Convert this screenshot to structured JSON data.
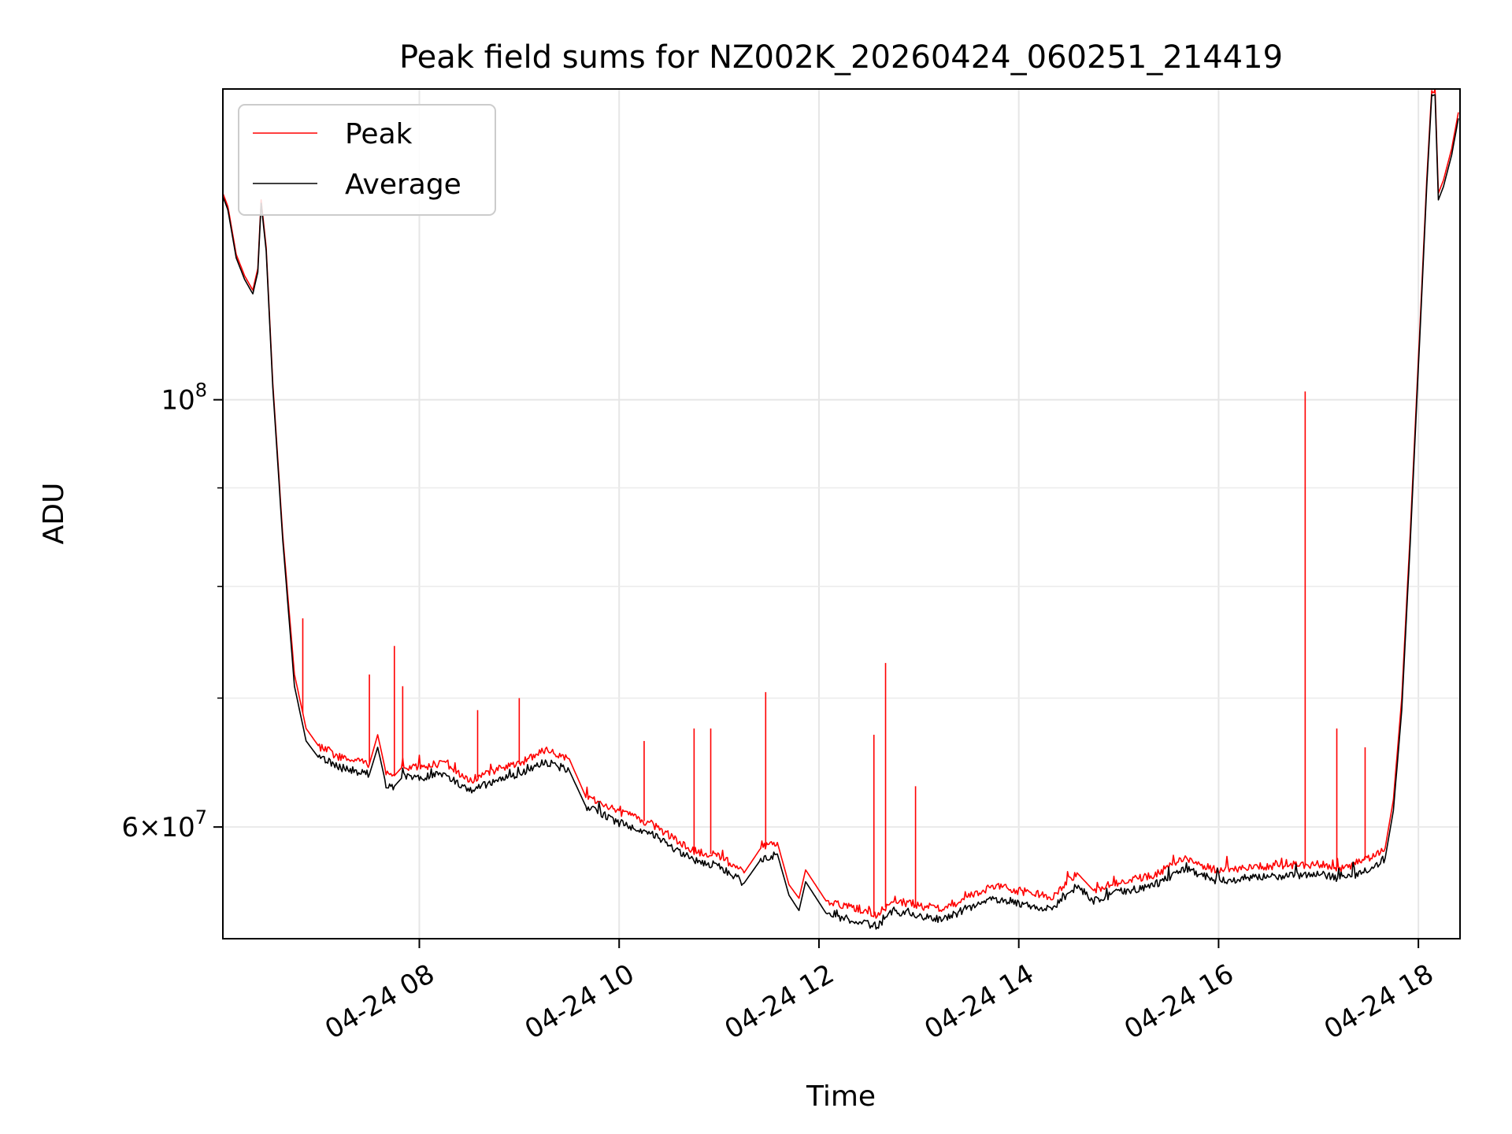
{
  "chart_data": {
    "type": "line",
    "title": "Peak field sums for NZ002K_20260424_060251_214419",
    "xlabel": "Time",
    "ylabel": "ADU",
    "yscale": "log",
    "xlim": [
      "2026-04-24 06:02",
      "2026-04-24 18:25"
    ],
    "ylim": [
      52500000,
      145000000
    ],
    "grid": true,
    "legend": "top-left",
    "x_ticks": [
      {
        "t": "2026-04-24 08:00",
        "label": "04-24 08"
      },
      {
        "t": "2026-04-24 10:00",
        "label": "04-24 10"
      },
      {
        "t": "2026-04-24 12:00",
        "label": "04-24 12"
      },
      {
        "t": "2026-04-24 14:00",
        "label": "04-24 14"
      },
      {
        "t": "2026-04-24 16:00",
        "label": "04-24 16"
      },
      {
        "t": "2026-04-24 18:00",
        "label": "04-24 18"
      }
    ],
    "y_major_ticks": [
      {
        "value": 60000000,
        "base": "6",
        "exp": "7"
      },
      {
        "value": 100000000,
        "base": "",
        "exp": "8"
      }
    ],
    "y_minor_ticks": [
      60000000,
      70000000,
      80000000,
      90000000
    ],
    "series": [
      {
        "name": "Peak",
        "color": "#ff0000",
        "t": [
          "2026-04-24 06:02",
          "2026-04-24 06:05",
          "2026-04-24 06:10",
          "2026-04-24 06:15",
          "2026-04-24 06:20",
          "2026-04-24 06:23",
          "2026-04-24 06:25",
          "2026-04-24 06:28",
          "2026-04-24 06:32",
          "2026-04-24 06:38",
          "2026-04-24 06:45",
          "2026-04-24 06:52",
          "2026-04-24 07:00",
          "2026-04-24 07:05",
          "2026-04-24 07:10",
          "2026-04-24 07:20",
          "2026-04-24 07:30",
          "2026-04-24 07:35",
          "2026-04-24 07:40",
          "2026-04-24 07:45",
          "2026-04-24 07:50",
          "2026-04-24 08:00",
          "2026-04-24 08:15",
          "2026-04-24 08:30",
          "2026-04-24 08:45",
          "2026-04-24 09:00",
          "2026-04-24 09:15",
          "2026-04-24 09:30",
          "2026-04-24 09:40",
          "2026-04-24 10:00",
          "2026-04-24 10:20",
          "2026-04-24 10:30",
          "2026-04-24 10:45",
          "2026-04-24 11:00",
          "2026-04-24 11:15",
          "2026-04-24 11:25",
          "2026-04-24 11:35",
          "2026-04-24 11:42",
          "2026-04-24 11:48",
          "2026-04-24 11:52",
          "2026-04-24 12:05",
          "2026-04-24 12:20",
          "2026-04-24 12:35",
          "2026-04-24 12:45",
          "2026-04-24 13:00",
          "2026-04-24 13:15",
          "2026-04-24 13:30",
          "2026-04-24 13:45",
          "2026-04-24 14:00",
          "2026-04-24 14:20",
          "2026-04-24 14:35",
          "2026-04-24 14:45",
          "2026-04-24 15:00",
          "2026-04-24 15:20",
          "2026-04-24 15:40",
          "2026-04-24 16:00",
          "2026-04-24 16:20",
          "2026-04-24 16:40",
          "2026-04-24 17:00",
          "2026-04-24 17:15",
          "2026-04-24 17:30",
          "2026-04-24 17:40",
          "2026-04-24 17:45",
          "2026-04-24 17:50",
          "2026-04-24 17:55",
          "2026-04-24 18:00",
          "2026-04-24 18:05",
          "2026-04-24 18:08",
          "2026-04-24 18:10",
          "2026-04-24 18:12",
          "2026-04-24 18:15",
          "2026-04-24 18:20",
          "2026-04-24 18:24"
        ],
        "values": [
          128000000,
          126000000,
          119000000,
          116000000,
          114000000,
          117000000,
          127000000,
          120000000,
          102000000,
          85000000,
          72000000,
          67500000,
          66000000,
          65800000,
          65300000,
          65000000,
          64700000,
          67000000,
          64000000,
          63800000,
          64500000,
          64400000,
          64800000,
          63400000,
          64200000,
          64700000,
          65800000,
          65100000,
          62200000,
          61100000,
          60200000,
          59400000,
          58300000,
          58000000,
          56800000,
          58500000,
          58900000,
          56000000,
          55100000,
          57000000,
          54800000,
          54500000,
          54000000,
          55000000,
          54600000,
          54400000,
          55200000,
          55900000,
          55600000,
          55200000,
          56800000,
          55600000,
          56200000,
          56600000,
          57800000,
          56900000,
          57200000,
          57300000,
          57400000,
          57100000,
          57800000,
          58500000,
          62000000,
          70000000,
          85000000,
          105000000,
          130000000,
          145000000,
          145000000,
          128000000,
          130000000,
          135000000,
          141000000
        ]
      },
      {
        "name": "Average",
        "color": "#000000",
        "t": [
          "2026-04-24 06:02",
          "2026-04-24 06:05",
          "2026-04-24 06:10",
          "2026-04-24 06:15",
          "2026-04-24 06:20",
          "2026-04-24 06:23",
          "2026-04-24 06:25",
          "2026-04-24 06:28",
          "2026-04-24 06:32",
          "2026-04-24 06:38",
          "2026-04-24 06:45",
          "2026-04-24 06:52",
          "2026-04-24 07:00",
          "2026-04-24 07:05",
          "2026-04-24 07:10",
          "2026-04-24 07:20",
          "2026-04-24 07:30",
          "2026-04-24 07:35",
          "2026-04-24 07:40",
          "2026-04-24 07:45",
          "2026-04-24 07:50",
          "2026-04-24 08:00",
          "2026-04-24 08:15",
          "2026-04-24 08:30",
          "2026-04-24 08:45",
          "2026-04-24 09:00",
          "2026-04-24 09:15",
          "2026-04-24 09:30",
          "2026-04-24 09:40",
          "2026-04-24 10:00",
          "2026-04-24 10:20",
          "2026-04-24 10:30",
          "2026-04-24 10:45",
          "2026-04-24 11:00",
          "2026-04-24 11:15",
          "2026-04-24 11:25",
          "2026-04-24 11:35",
          "2026-04-24 11:42",
          "2026-04-24 11:48",
          "2026-04-24 11:52",
          "2026-04-24 12:05",
          "2026-04-24 12:20",
          "2026-04-24 12:35",
          "2026-04-24 12:45",
          "2026-04-24 13:00",
          "2026-04-24 13:15",
          "2026-04-24 13:30",
          "2026-04-24 13:45",
          "2026-04-24 14:00",
          "2026-04-24 14:20",
          "2026-04-24 14:35",
          "2026-04-24 14:45",
          "2026-04-24 15:00",
          "2026-04-24 15:20",
          "2026-04-24 15:40",
          "2026-04-24 16:00",
          "2026-04-24 16:20",
          "2026-04-24 16:40",
          "2026-04-24 17:00",
          "2026-04-24 17:15",
          "2026-04-24 17:30",
          "2026-04-24 17:40",
          "2026-04-24 17:45",
          "2026-04-24 17:50",
          "2026-04-24 17:55",
          "2026-04-24 18:00",
          "2026-04-24 18:05",
          "2026-04-24 18:08",
          "2026-04-24 18:10",
          "2026-04-24 18:12",
          "2026-04-24 18:15",
          "2026-04-24 18:20",
          "2026-04-24 18:24"
        ],
        "values": [
          127500000,
          125500000,
          118500000,
          115500000,
          113500000,
          116500000,
          126500000,
          119500000,
          101500000,
          84500000,
          71000000,
          66500000,
          65100000,
          64900000,
          64500000,
          64200000,
          63900000,
          66000000,
          63100000,
          63000000,
          63700000,
          63600000,
          64000000,
          62600000,
          63400000,
          63800000,
          64900000,
          64200000,
          61500000,
          60300000,
          59500000,
          58700000,
          57600000,
          57300000,
          56100000,
          57700000,
          58100000,
          55300000,
          54300000,
          56200000,
          54000000,
          53700000,
          53300000,
          54300000,
          53900000,
          53700000,
          54500000,
          55100000,
          54800000,
          54400000,
          55900000,
          54900000,
          55500000,
          55900000,
          57100000,
          56200000,
          56500000,
          56600000,
          56700000,
          56400000,
          57000000,
          57800000,
          61200000,
          69000000,
          84000000,
          104000000,
          129000000,
          144000000,
          144000000,
          127000000,
          129000000,
          134000000,
          140000000
        ]
      }
    ],
    "spikes": [
      {
        "series": "Peak",
        "t": "2026-04-24 06:50",
        "value": 77000000
      },
      {
        "series": "Peak",
        "t": "2026-04-24 07:30",
        "value": 72000000
      },
      {
        "series": "Peak",
        "t": "2026-04-24 07:45",
        "value": 74500000
      },
      {
        "series": "Peak",
        "t": "2026-04-24 07:50",
        "value": 71000000
      },
      {
        "series": "Peak",
        "t": "2026-04-24 08:35",
        "value": 69000000
      },
      {
        "series": "Peak",
        "t": "2026-04-24 09:00",
        "value": 70000000
      },
      {
        "series": "Peak",
        "t": "2026-04-24 10:15",
        "value": 66500000
      },
      {
        "series": "Peak",
        "t": "2026-04-24 10:45",
        "value": 67500000
      },
      {
        "series": "Peak",
        "t": "2026-04-24 10:55",
        "value": 67500000
      },
      {
        "series": "Peak",
        "t": "2026-04-24 11:28",
        "value": 70500000
      },
      {
        "series": "Peak",
        "t": "2026-04-24 12:33",
        "value": 67000000
      },
      {
        "series": "Peak",
        "t": "2026-04-24 12:40",
        "value": 73000000
      },
      {
        "series": "Peak",
        "t": "2026-04-24 12:58",
        "value": 63000000
      },
      {
        "series": "Peak",
        "t": "2026-04-24 16:52",
        "value": 101000000
      },
      {
        "series": "Peak",
        "t": "2026-04-24 17:11",
        "value": 67500000
      },
      {
        "series": "Peak",
        "t": "2026-04-24 17:28",
        "value": 66000000
      }
    ]
  }
}
